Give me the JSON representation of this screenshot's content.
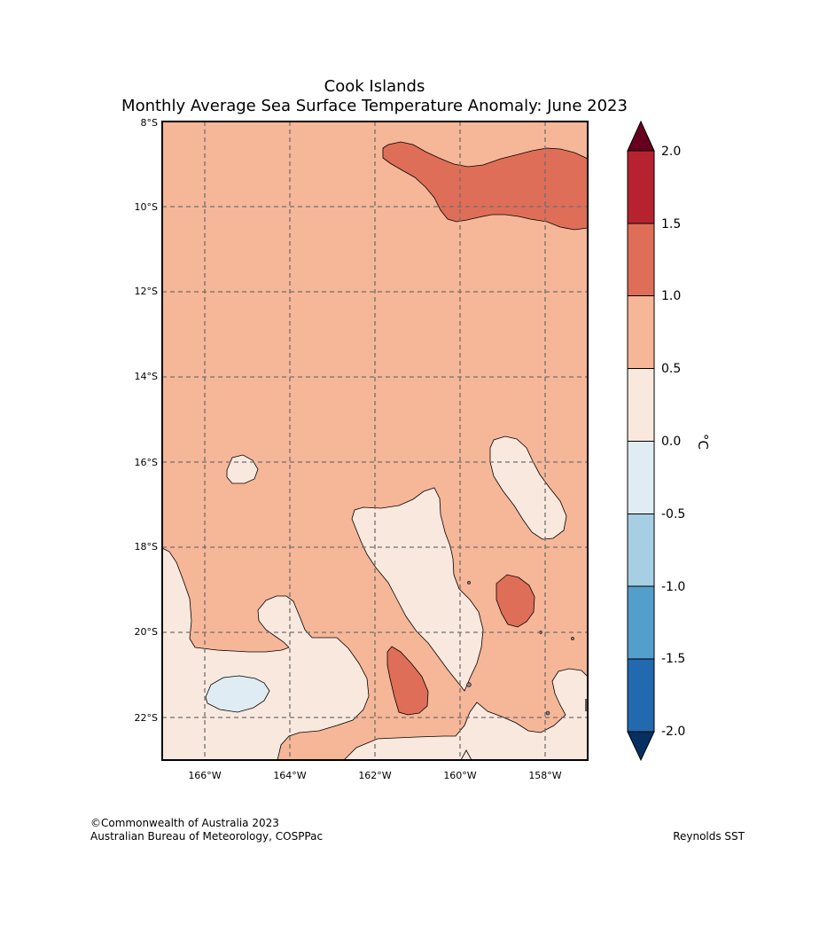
{
  "title": {
    "line1": "Cook Islands",
    "line2": "Monthly Average Sea Surface Temperature Anomaly: June 2023"
  },
  "map": {
    "lat_labels": [
      "8°S",
      "10°S",
      "12°S",
      "14°S",
      "16°S",
      "18°S",
      "20°S",
      "22°S"
    ],
    "lon_labels": [
      "166°W",
      "164°W",
      "162°W",
      "160°W",
      "158°W"
    ],
    "lat_range": [
      "8°S",
      "23°S"
    ],
    "lon_range": [
      "167°W",
      "157°W"
    ],
    "background_class": "0.5 to 1.0",
    "regions": [
      {
        "name": "northern warm band",
        "class": "1.0 to 1.5"
      },
      {
        "name": "central warm patch",
        "class": "1.0 to 1.5"
      },
      {
        "name": "southern warm patch",
        "class": "1.0 to 1.5"
      },
      {
        "name": "small western patch",
        "class": "0.0 to 0.5"
      },
      {
        "name": "eastern patch",
        "class": "0.0 to 0.5"
      },
      {
        "name": "central tongue",
        "class": "0.0 to 0.5"
      },
      {
        "name": "southern region",
        "class": "0.0 to 0.5"
      },
      {
        "name": "south-west cool patch",
        "class": "-0.5 to 0.0"
      }
    ]
  },
  "colorbar": {
    "unit": "°C",
    "ticks": [
      "2.0",
      "1.5",
      "1.0",
      "0.5",
      "0.0",
      "-0.5",
      "-1.0",
      "-1.5",
      "-2.0"
    ],
    "over_color": "#67001f",
    "under_color": "#053061",
    "band_colors": [
      "#b2182b",
      "#d6604d",
      "#f4a582",
      "#fddbc7",
      "#d1e5f0",
      "#92c5de",
      "#4393c3",
      "#2166ac"
    ],
    "display_colors": [
      "#b72231",
      "#df6e58",
      "#f6b698",
      "#f9e8de",
      "#e0ecf3",
      "#a6cfe4",
      "#549ecb",
      "#2369b0"
    ]
  },
  "footer": {
    "credit_line1": "©Commonwealth of Australia 2023",
    "credit_line2": "Australian Bureau of Meteorology, COSPPac",
    "source": "Reynolds SST"
  }
}
